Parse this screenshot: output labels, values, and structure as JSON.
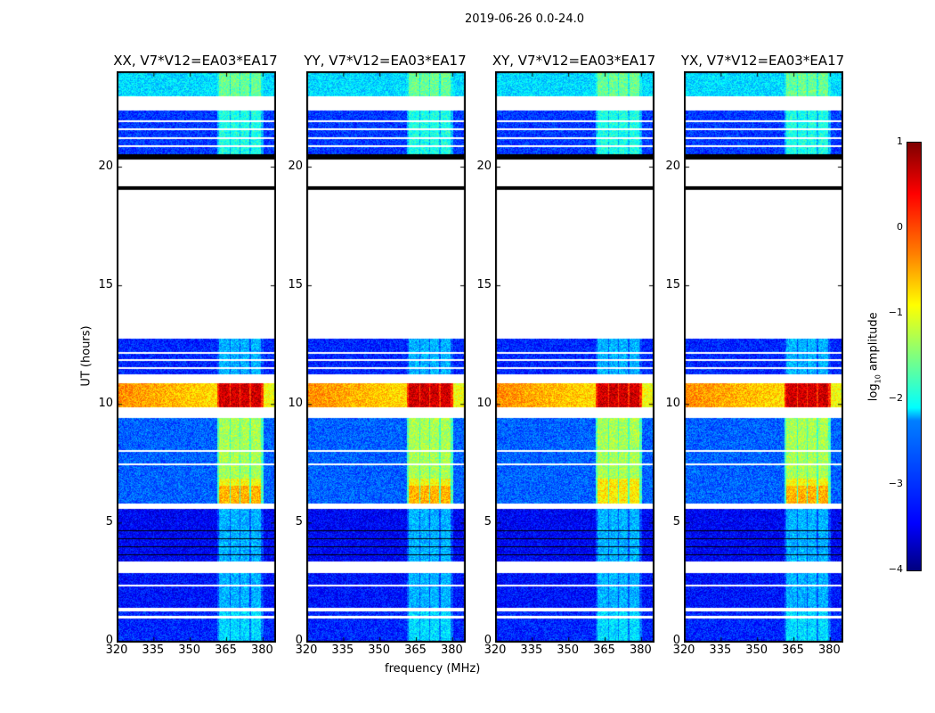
{
  "chart_data": {
    "type": "heatmap",
    "title": "2019-06-26 0.0-24.0",
    "xlabel": "frequency (MHz)",
    "ylabel": "UT (hours)",
    "xlim": [
      320,
      385
    ],
    "ylim": [
      0,
      24
    ],
    "xticks": [
      "320",
      "335",
      "350",
      "365",
      "380"
    ],
    "yticks": [
      "0",
      "5",
      "10",
      "15",
      "20"
    ],
    "panels": [
      {
        "title": "XX, V7*V12=EA03*EA17"
      },
      {
        "title": "YY, V7*V12=EA03*EA17"
      },
      {
        "title": "XY, V7*V12=EA03*EA17"
      },
      {
        "title": "YX, V7*V12=EA03*EA17"
      }
    ],
    "rfi_channels_mhz": [
      [
        361.5,
        366
      ],
      [
        366.5,
        370
      ],
      [
        370.5,
        374
      ],
      [
        375,
        379
      ]
    ],
    "time_segments": [
      {
        "from": 0,
        "to": 1.3,
        "base": -3.2,
        "rfi": -2.3
      },
      {
        "from": 1.3,
        "to": 1.45,
        "blank": true
      },
      {
        "from": 1.45,
        "to": 2.9,
        "base": -3.3,
        "rfi": -2.5
      },
      {
        "from": 2.9,
        "to": 3.4,
        "blank": true
      },
      {
        "from": 3.4,
        "to": 5.6,
        "base": -3.4,
        "rfi": -2.5
      },
      {
        "from": 5.6,
        "to": 5.85,
        "blank": true
      },
      {
        "from": 5.85,
        "to": 9.45,
        "base": -2.9,
        "rfi": -1.3
      },
      {
        "from": 9.45,
        "to": 9.9,
        "blank": true
      },
      {
        "from": 9.9,
        "to": 10.9,
        "base": -0.3,
        "rfi": 0.6
      },
      {
        "from": 10.9,
        "to": 11.3,
        "blank": true
      },
      {
        "from": 11.3,
        "to": 12.8,
        "base": -3.2,
        "rfi": -2.5
      },
      {
        "from": 12.8,
        "to": 20.35,
        "blank": true
      },
      {
        "from": 20.55,
        "to": 22.4,
        "base": -3.1,
        "rfi": -2.0
      },
      {
        "from": 23.0,
        "to": 24,
        "base": -2.3,
        "rfi": -1.6
      }
    ],
    "colorbar": {
      "label": "log10 amplitude",
      "label_main": "log",
      "label_sub": "10",
      "label_rest": " amplitude",
      "min": -4,
      "max": 1,
      "ticks": [
        "1",
        "0",
        "−1",
        "−2",
        "−3",
        "−4"
      ]
    }
  }
}
